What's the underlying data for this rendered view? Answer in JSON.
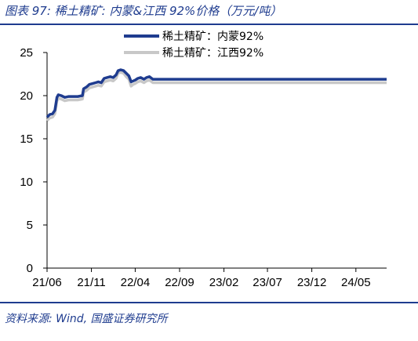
{
  "header": {
    "title": "图表 97:  稀土精矿:  内蒙&江西 92%价格（万元/吨）"
  },
  "footer": {
    "source": "资料来源:  Wind,  国盛证券研究所"
  },
  "colors": {
    "accent": "#1f3c8f",
    "series_inner_mongolia": "#1f3c8f",
    "series_jiangxi": "#c8c8c8"
  },
  "chart_data": {
    "type": "line",
    "title": "",
    "xlabel": "",
    "ylabel": "",
    "ylim": [
      0,
      25
    ],
    "yticks": [
      0,
      5,
      10,
      15,
      20,
      25
    ],
    "xlim": [
      "2021-06-01",
      "2024-08-15"
    ],
    "xticks": [
      "21/06",
      "21/11",
      "22/04",
      "22/09",
      "23/02",
      "23/07",
      "23/12",
      "24/05"
    ],
    "xtick_dates": [
      "2021-06-01",
      "2021-11-01",
      "2022-04-01",
      "2022-09-01",
      "2023-02-01",
      "2023-07-01",
      "2023-12-01",
      "2024-05-01"
    ],
    "grid": false,
    "legend_position": "top-center",
    "series": [
      {
        "name": "稀土精矿：内蒙92%",
        "color": "#1f3c8f",
        "x": [
          "2021-06-01",
          "2021-06-10",
          "2021-06-20",
          "2021-06-28",
          "2021-07-05",
          "2021-07-10",
          "2021-07-20",
          "2021-08-01",
          "2021-08-15",
          "2021-09-01",
          "2021-09-15",
          "2021-10-01",
          "2021-10-05",
          "2021-10-15",
          "2021-10-25",
          "2021-11-05",
          "2021-11-15",
          "2021-11-25",
          "2021-12-05",
          "2021-12-15",
          "2021-12-25",
          "2022-01-05",
          "2022-01-15",
          "2022-01-25",
          "2022-02-01",
          "2022-02-10",
          "2022-02-20",
          "2022-03-01",
          "2022-03-10",
          "2022-03-18",
          "2022-03-25",
          "2022-04-01",
          "2022-04-10",
          "2022-04-20",
          "2022-05-01",
          "2022-05-10",
          "2022-05-20",
          "2022-06-01",
          "2022-06-15",
          "2022-07-01",
          "2024-08-15"
        ],
        "y": [
          17.5,
          17.8,
          17.9,
          18.3,
          19.8,
          20.1,
          20.0,
          19.8,
          19.9,
          19.9,
          19.9,
          20.0,
          20.8,
          21.0,
          21.3,
          21.4,
          21.5,
          21.6,
          21.5,
          22.0,
          22.1,
          22.2,
          22.1,
          22.4,
          22.9,
          23.0,
          22.9,
          22.6,
          22.3,
          21.6,
          21.7,
          21.8,
          22.0,
          22.1,
          21.9,
          22.1,
          22.2,
          21.9,
          21.9,
          21.9,
          21.9
        ]
      },
      {
        "name": "稀土精矿：江西92%",
        "color": "#c8c8c8",
        "x": [
          "2021-06-01",
          "2021-06-10",
          "2021-06-20",
          "2021-06-28",
          "2021-07-05",
          "2021-07-10",
          "2021-07-20",
          "2021-08-01",
          "2021-08-15",
          "2021-09-01",
          "2021-09-15",
          "2021-10-01",
          "2021-10-05",
          "2021-10-15",
          "2021-10-25",
          "2021-11-05",
          "2021-11-15",
          "2021-11-25",
          "2021-12-05",
          "2021-12-15",
          "2021-12-25",
          "2022-01-05",
          "2022-01-15",
          "2022-01-25",
          "2022-02-01",
          "2022-02-10",
          "2022-02-20",
          "2022-03-01",
          "2022-03-10",
          "2022-03-18",
          "2022-03-25",
          "2022-04-01",
          "2022-04-10",
          "2022-04-20",
          "2022-05-01",
          "2022-05-10",
          "2022-05-20",
          "2022-06-01",
          "2022-06-15",
          "2022-07-01",
          "2024-08-15"
        ],
        "y": [
          17.1,
          17.4,
          17.5,
          17.9,
          19.4,
          19.7,
          19.6,
          19.4,
          19.5,
          19.5,
          19.5,
          19.6,
          20.4,
          20.6,
          20.9,
          21.0,
          21.1,
          21.2,
          21.1,
          21.6,
          21.7,
          21.8,
          21.7,
          22.0,
          22.6,
          22.7,
          22.6,
          22.2,
          21.9,
          21.1,
          21.3,
          21.4,
          21.6,
          21.7,
          21.5,
          21.7,
          21.8,
          21.5,
          21.5,
          21.5,
          21.5
        ]
      }
    ]
  }
}
